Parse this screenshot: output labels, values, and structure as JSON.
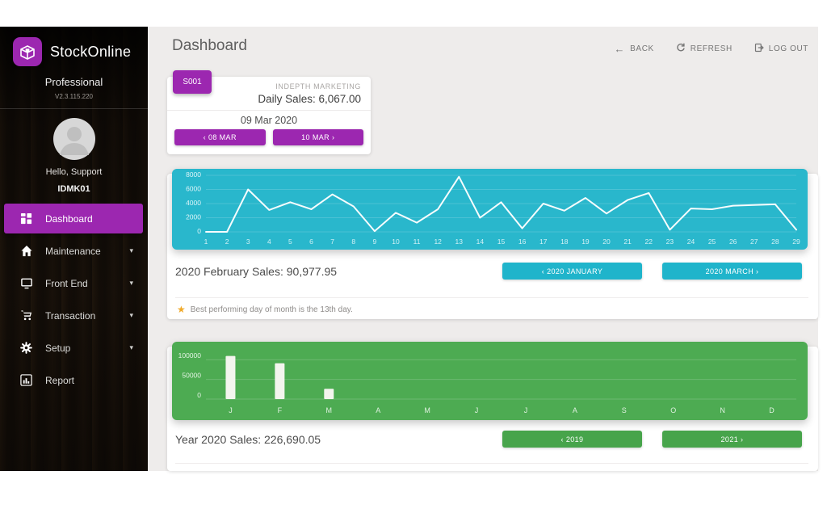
{
  "theme": {
    "accent_purple": "#9c27b0",
    "cyan": "#29b7cc",
    "green": "#4dab52",
    "star_orange": "#f0a929"
  },
  "app": {
    "name": "StockOnline",
    "edition": "Professional",
    "version": "V2.3.115.220"
  },
  "sidebar": {
    "greeting": "Hello, Support",
    "user_code": "IDMK01",
    "items": [
      {
        "label": "Dashboard"
      },
      {
        "label": "Maintenance"
      },
      {
        "label": "Front End"
      },
      {
        "label": "Transaction"
      },
      {
        "label": "Setup"
      },
      {
        "label": "Report"
      }
    ]
  },
  "header": {
    "title": "Dashboard",
    "back_label": "BACK",
    "refresh_label": "REFRESH",
    "logout_label": "LOG OUT"
  },
  "daily_card": {
    "badge": "S001",
    "company": "INDEPTH MARKETING",
    "sales_text": "Daily Sales: 6,067.00",
    "date": "09 Mar 2020",
    "prev_label": "‹ 08 MAR",
    "next_label": "10 MAR ›"
  },
  "monthly_card": {
    "summary": "2020 February Sales: 90,977.95",
    "prev_label": "‹ 2020 JANUARY",
    "next_label": "2020 MARCH ›",
    "note": "Best performing day of month is the 13th day.",
    "star_icon": "★"
  },
  "yearly_card": {
    "summary": "Year 2020 Sales: 226,690.05",
    "prev_label": "‹ 2019",
    "next_label": "2021 ›"
  },
  "chart_data": [
    {
      "type": "line",
      "title": "2020 February daily sales",
      "x": [
        1,
        2,
        3,
        4,
        5,
        6,
        7,
        8,
        9,
        10,
        11,
        12,
        13,
        14,
        15,
        16,
        17,
        18,
        19,
        20,
        21,
        22,
        23,
        24,
        25,
        26,
        27,
        28,
        29
      ],
      "values": [
        0,
        0,
        6000,
        3100,
        4200,
        3200,
        5300,
        3600,
        100,
        2700,
        1300,
        3200,
        7800,
        2000,
        4200,
        500,
        4000,
        3000,
        4800,
        2600,
        4500,
        5500,
        300,
        3300,
        3200,
        3700,
        3800,
        3900,
        300
      ],
      "ylim": [
        0,
        8000
      ],
      "yticks": [
        0,
        2000,
        4000,
        6000,
        8000
      ],
      "grid": true,
      "line_color": "#ffffff",
      "panel_color": "#29b7cc"
    },
    {
      "type": "bar",
      "title": "Year 2020 monthly sales",
      "categories": [
        "J",
        "F",
        "M",
        "A",
        "M",
        "J",
        "J",
        "A",
        "S",
        "O",
        "N",
        "D"
      ],
      "values": [
        109500,
        90978,
        26212,
        0,
        0,
        0,
        0,
        0,
        0,
        0,
        0,
        0
      ],
      "ylim": [
        0,
        125000
      ],
      "yticks": [
        0,
        50000,
        100000
      ],
      "grid": true,
      "bar_color": "#f3f5ee",
      "panel_color": "#4dab52"
    }
  ]
}
